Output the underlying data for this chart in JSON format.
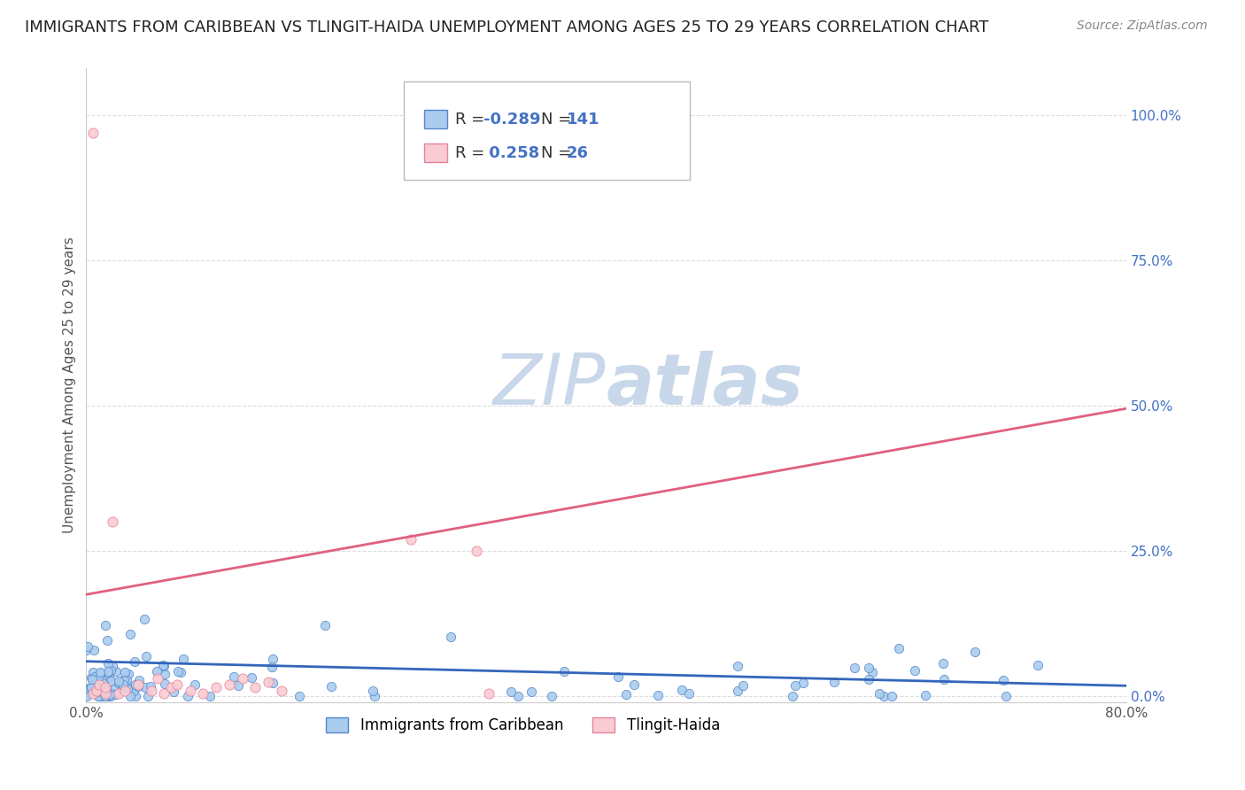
{
  "title": "IMMIGRANTS FROM CARIBBEAN VS TLINGIT-HAIDA UNEMPLOYMENT AMONG AGES 25 TO 29 YEARS CORRELATION CHART",
  "source": "Source: ZipAtlas.com",
  "ylabel": "Unemployment Among Ages 25 to 29 years",
  "xlim": [
    0.0,
    0.8
  ],
  "ylim": [
    -0.01,
    1.08
  ],
  "x_ticks": [
    0.0,
    0.1,
    0.2,
    0.3,
    0.4,
    0.5,
    0.6,
    0.7,
    0.8
  ],
  "x_tick_labels_show": [
    "0.0%",
    "",
    "",
    "",
    "",
    "",
    "",
    "",
    "80.0%"
  ],
  "y_ticks": [
    0.0,
    0.25,
    0.5,
    0.75,
    1.0
  ],
  "y_tick_labels": [
    "0.0%",
    "25.0%",
    "50.0%",
    "75.0%",
    "100.0%"
  ],
  "blue_color": "#aaccee",
  "blue_edge_color": "#5588cc",
  "blue_line_color": "#3366bb",
  "pink_color": "#f9ccd3",
  "pink_edge_color": "#e8829a",
  "pink_line_color": "#e06080",
  "watermark_color": "#c8d8ea",
  "blue_trend_x": [
    0.0,
    0.8
  ],
  "blue_trend_y": [
    0.06,
    0.018
  ],
  "pink_trend_x": [
    0.0,
    0.8
  ],
  "pink_trend_y": [
    0.175,
    0.495
  ],
  "title_fontsize": 13,
  "source_fontsize": 10,
  "axis_label_fontsize": 11,
  "tick_fontsize": 11,
  "legend_fontsize": 13,
  "background_color": "#ffffff",
  "grid_color": "#dddddd"
}
